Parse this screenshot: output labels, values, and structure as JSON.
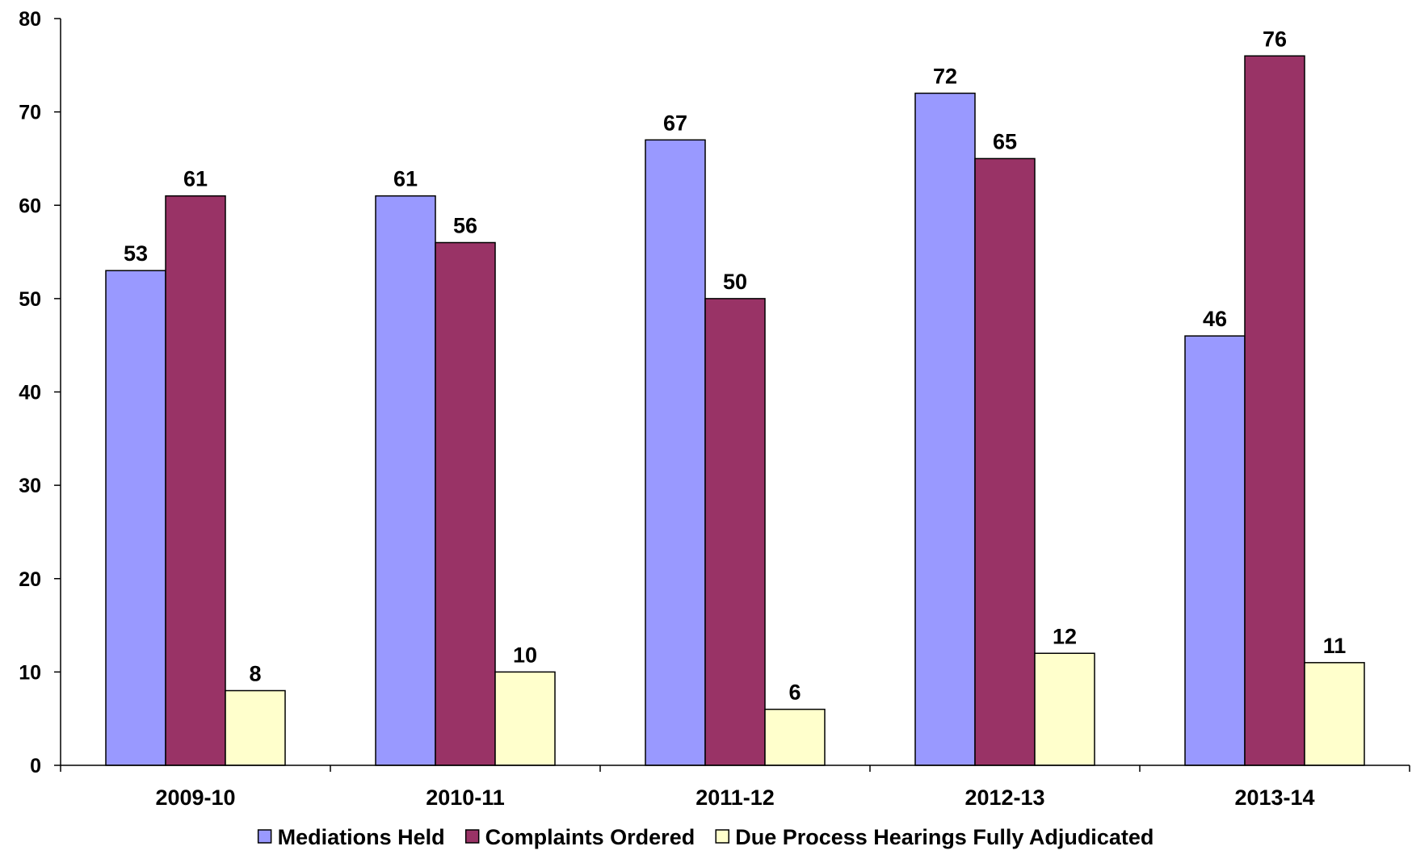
{
  "chart_data": {
    "type": "bar",
    "title": "",
    "xlabel": "",
    "ylabel": "",
    "categories": [
      "2009-10",
      "2010-11",
      "2011-12",
      "2012-13",
      "2013-14"
    ],
    "series": [
      {
        "name": "Mediations Held",
        "color": "#9999ff",
        "values": [
          53,
          61,
          67,
          72,
          46
        ]
      },
      {
        "name": "Complaints Ordered",
        "color": "#993366",
        "values": [
          61,
          56,
          50,
          65,
          76
        ]
      },
      {
        "name": "Due Process Hearings Fully Adjudicated",
        "color": "#ffffcc",
        "values": [
          8,
          10,
          6,
          12,
          11
        ]
      }
    ],
    "ylim": [
      0,
      80
    ],
    "yticks": [
      0,
      10,
      20,
      30,
      40,
      50,
      60,
      70,
      80
    ],
    "grid": false,
    "data_labels": true,
    "legend_position": "bottom"
  }
}
